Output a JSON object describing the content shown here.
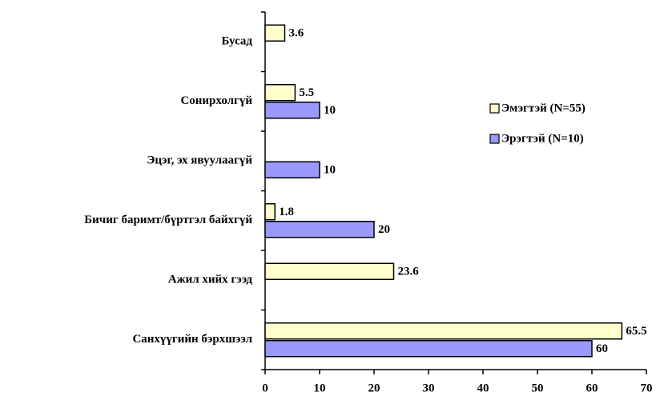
{
  "chart_data": {
    "type": "bar",
    "orientation": "horizontal",
    "categories": [
      "Бусад",
      "Сонирхолгүй",
      "Эцэг, эх явуулаагүй",
      "Бичиг баримт/бүртгэл байхгүй",
      "Ажил хийх гээд",
      "Санхүүгийн бэрхшээл"
    ],
    "series": [
      {
        "name": "Эмэгтэй (N=55)",
        "color": "#ffffcc",
        "values": [
          3.6,
          5.5,
          null,
          1.8,
          23.6,
          65.5
        ]
      },
      {
        "name": "Эрэгтэй (N=10)",
        "color": "#9999ff",
        "values": [
          null,
          10,
          10,
          20,
          null,
          60
        ]
      }
    ],
    "xlim": [
      0,
      70
    ],
    "xticks": [
      0,
      10,
      20,
      30,
      40,
      50,
      60,
      70
    ],
    "legend": "right",
    "grid": false
  }
}
